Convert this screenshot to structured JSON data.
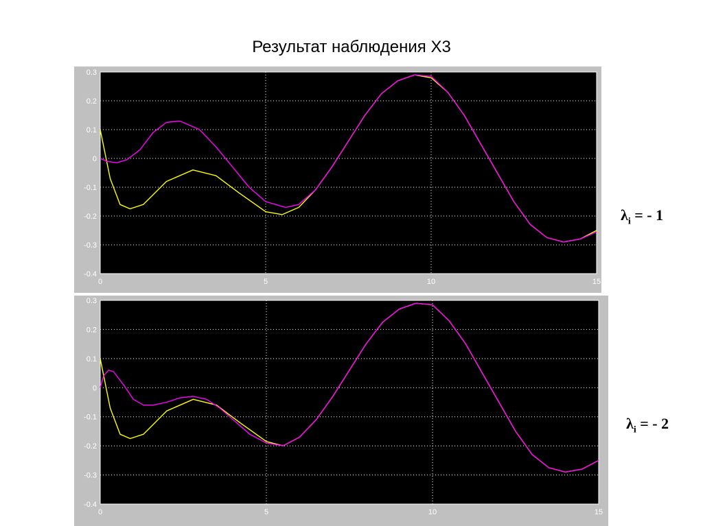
{
  "title": "Результат наблюдения Х3",
  "chart_data": [
    {
      "type": "line",
      "title": "",
      "xlabel": "",
      "ylabel": "",
      "xlim": [
        0,
        15
      ],
      "ylim": [
        -0.4,
        0.3
      ],
      "xticks": [
        "0",
        "5",
        "10",
        "15"
      ],
      "yticks": [
        "0.3",
        "0.2",
        "0.1",
        "0",
        "-0.1",
        "-0.2",
        "-0.3",
        "-0.4"
      ],
      "grid": true,
      "background": "#000000",
      "annotation": {
        "symbol": "λ",
        "sub": "i",
        "text": " = - 1"
      },
      "series": [
        {
          "color": "#ffff00",
          "x": [
            0,
            0.3,
            0.6,
            0.9,
            1.3,
            2.0,
            2.8,
            3.5,
            4.2,
            5.0,
            5.5,
            6.0,
            6.5,
            7.0,
            7.5,
            8.0,
            8.5,
            9.0,
            9.5,
            10.0,
            10.5,
            11.0,
            11.5,
            12.0,
            12.5,
            13.0,
            13.5,
            14.0,
            14.5,
            15.0
          ],
          "y": [
            0.1,
            -0.07,
            -0.16,
            -0.175,
            -0.16,
            -0.08,
            -0.04,
            -0.06,
            -0.12,
            -0.185,
            -0.195,
            -0.17,
            -0.11,
            -0.03,
            0.06,
            0.15,
            0.225,
            0.27,
            0.29,
            0.28,
            0.23,
            0.15,
            0.05,
            -0.05,
            -0.15,
            -0.23,
            -0.275,
            -0.29,
            -0.28,
            -0.25
          ]
        },
        {
          "color": "#ff00ff",
          "x": [
            0,
            0.2,
            0.5,
            0.8,
            1.2,
            1.6,
            2.0,
            2.4,
            3.0,
            3.5,
            4.0,
            4.5,
            5.0,
            5.6,
            6.0,
            6.5,
            7.0,
            7.5,
            8.0,
            8.5,
            9.0,
            9.5,
            10.0,
            10.5,
            11.0,
            11.5,
            12.0,
            12.5,
            13.0,
            13.5,
            14.0,
            14.5,
            15.0
          ],
          "y": [
            0.0,
            -0.01,
            -0.015,
            -0.005,
            0.03,
            0.09,
            0.125,
            0.13,
            0.1,
            0.04,
            -0.03,
            -0.1,
            -0.15,
            -0.17,
            -0.16,
            -0.11,
            -0.03,
            0.06,
            0.15,
            0.225,
            0.27,
            0.29,
            0.285,
            0.23,
            0.15,
            0.05,
            -0.05,
            -0.15,
            -0.23,
            -0.275,
            -0.29,
            -0.28,
            -0.255
          ]
        }
      ]
    },
    {
      "type": "line",
      "title": "",
      "xlabel": "",
      "ylabel": "",
      "xlim": [
        0,
        15
      ],
      "ylim": [
        -0.4,
        0.3
      ],
      "xticks": [
        "0",
        "5",
        "10",
        "15"
      ],
      "yticks": [
        "0.3",
        "0.2",
        "0.1",
        "0",
        "-0.1",
        "-0.2",
        "-0.3",
        "-0.4"
      ],
      "grid": true,
      "background": "#000000",
      "annotation": {
        "symbol": "λ",
        "sub": "i",
        "text": " = - 2"
      },
      "series": [
        {
          "color": "#ffff00",
          "x": [
            0,
            0.3,
            0.6,
            0.9,
            1.3,
            2.0,
            2.8,
            3.5,
            4.2,
            5.0,
            5.5,
            6.0,
            6.5,
            7.0,
            7.5,
            8.0,
            8.5,
            9.0,
            9.5,
            10.0,
            10.5,
            11.0,
            11.5,
            12.0,
            12.5,
            13.0,
            13.5,
            14.0,
            14.5,
            15.0
          ],
          "y": [
            0.1,
            -0.07,
            -0.16,
            -0.175,
            -0.16,
            -0.08,
            -0.04,
            -0.06,
            -0.12,
            -0.185,
            -0.2,
            -0.17,
            -0.11,
            -0.03,
            0.06,
            0.15,
            0.225,
            0.27,
            0.29,
            0.285,
            0.23,
            0.15,
            0.05,
            -0.05,
            -0.15,
            -0.23,
            -0.275,
            -0.29,
            -0.28,
            -0.25
          ]
        },
        {
          "color": "#ff00ff",
          "x": [
            0,
            0.1,
            0.25,
            0.4,
            0.7,
            1.0,
            1.3,
            1.6,
            2.0,
            2.4,
            2.8,
            3.2,
            3.6,
            4.0,
            4.5,
            5.0,
            5.5,
            6.0,
            6.5,
            7.0,
            7.5,
            8.0,
            8.5,
            9.0,
            9.5,
            10.0,
            10.5,
            11.0,
            11.5,
            12.0,
            12.5,
            13.0,
            13.5,
            14.0,
            14.5,
            15.0
          ],
          "y": [
            0.0,
            0.04,
            0.06,
            0.055,
            0.01,
            -0.04,
            -0.06,
            -0.06,
            -0.05,
            -0.035,
            -0.03,
            -0.04,
            -0.07,
            -0.11,
            -0.16,
            -0.19,
            -0.2,
            -0.17,
            -0.11,
            -0.03,
            0.06,
            0.15,
            0.225,
            0.27,
            0.29,
            0.285,
            0.23,
            0.15,
            0.05,
            -0.05,
            -0.15,
            -0.23,
            -0.275,
            -0.29,
            -0.28,
            -0.25
          ]
        }
      ]
    }
  ]
}
